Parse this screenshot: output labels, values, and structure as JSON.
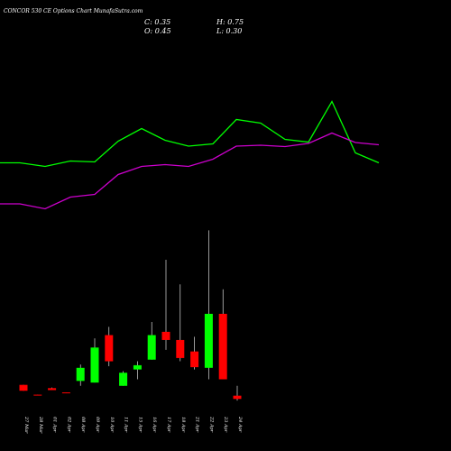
{
  "title": "CONCOR 530 CE Options Chart MunafaSutra.com",
  "ohlc": {
    "close_label": "C: 0.35",
    "high_label": "H: 0.75",
    "open_label": "O: 0.45",
    "low_label": "L: 0.30"
  },
  "colors": {
    "background": "#000000",
    "up": "#00ff00",
    "down": "#ff0000",
    "line_fast": "#00ff00",
    "line_slow": "#cc00cc",
    "wick": "#ffffff",
    "text": "#ffffff"
  },
  "chart_data": {
    "type": "candlestick",
    "categories": [
      "27 Mar",
      "28 Mar",
      "01 Apr",
      "02 Apr",
      "08 Apr",
      "09 Apr",
      "10 Apr",
      "11 Apr",
      "15 Apr",
      "16 Apr",
      "17 Apr",
      "18 Apr",
      "21 Apr",
      "22 Apr",
      "23 Apr",
      "24 Apr"
    ],
    "candles": [
      {
        "open": 0.78,
        "high": 0.78,
        "low": 0.6,
        "close": 0.6
      },
      {
        "open": 0.48,
        "high": 0.48,
        "low": 0.46,
        "close": 0.46
      },
      {
        "open": 0.68,
        "high": 0.7,
        "low": 0.62,
        "close": 0.62
      },
      {
        "open": 0.55,
        "high": 0.55,
        "low": 0.54,
        "close": 0.54
      },
      {
        "open": 0.9,
        "high": 1.4,
        "low": 0.75,
        "close": 1.3
      },
      {
        "open": 0.85,
        "high": 2.2,
        "low": 0.85,
        "close": 1.92
      },
      {
        "open": 2.3,
        "high": 2.55,
        "low": 1.35,
        "close": 1.5
      },
      {
        "open": 0.75,
        "high": 1.2,
        "low": 0.75,
        "close": 1.15
      },
      {
        "open": 1.25,
        "high": 1.5,
        "low": 0.95,
        "close": 1.38
      },
      {
        "open": 1.55,
        "high": 2.7,
        "low": 1.55,
        "close": 2.3
      },
      {
        "open": 2.4,
        "high": 4.6,
        "low": 1.85,
        "close": 2.15
      },
      {
        "open": 2.15,
        "high": 3.85,
        "low": 1.5,
        "close": 1.6
      },
      {
        "open": 1.8,
        "high": 2.25,
        "low": 1.25,
        "close": 1.32
      },
      {
        "open": 1.3,
        "high": 5.5,
        "low": 0.95,
        "close": 2.95
      },
      {
        "open": 2.95,
        "high": 3.7,
        "low": 0.95,
        "close": 0.95
      },
      {
        "open": 0.45,
        "high": 0.75,
        "low": 0.3,
        "close": 0.35
      }
    ],
    "overlay_lines": [
      {
        "color": "#00ff00",
        "values": [
          180.5,
          180.5,
          184.5,
          178.5,
          179.5,
          156.5,
          142.5,
          155.5,
          162,
          159.5,
          132.5,
          136.5,
          154.5,
          157.5,
          112.5,
          169.5,
          180.5
        ]
      },
      {
        "color": "#cc00cc",
        "values": [
          226,
          226,
          231.5,
          218.5,
          215.5,
          193.5,
          184.5,
          182.5,
          184.5,
          176.5,
          162,
          161,
          162.5,
          159,
          147.5,
          158,
          160.5
        ]
      }
    ],
    "overlay_x": [
      0,
      22,
      50,
      78,
      105,
      131,
      157,
      183,
      209,
      236,
      262,
      289,
      316,
      342,
      368,
      394,
      420
    ]
  }
}
